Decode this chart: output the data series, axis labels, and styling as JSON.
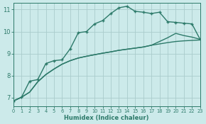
{
  "xlabel": "Humidex (Indice chaleur)",
  "background_color": "#cceaea",
  "grid_color": "#aacccc",
  "line_color": "#2d7a6a",
  "xlim": [
    0,
    23
  ],
  "ylim": [
    6.6,
    11.3
  ],
  "xticks": [
    0,
    1,
    2,
    3,
    4,
    5,
    6,
    7,
    8,
    9,
    10,
    11,
    12,
    13,
    14,
    15,
    16,
    17,
    18,
    19,
    20,
    21,
    22,
    23
  ],
  "yticks": [
    7,
    8,
    9,
    10,
    11
  ],
  "line1_x": [
    0,
    1,
    2,
    3,
    4,
    5,
    6,
    7,
    8,
    9,
    10,
    11,
    12,
    13,
    14,
    15,
    16,
    17,
    18,
    19,
    20,
    21,
    22,
    23
  ],
  "line1_y": [
    6.85,
    7.02,
    7.25,
    7.72,
    8.05,
    8.3,
    8.52,
    8.68,
    8.8,
    8.88,
    8.95,
    9.02,
    9.08,
    9.15,
    9.2,
    9.25,
    9.3,
    9.38,
    9.44,
    9.5,
    9.55,
    9.58,
    9.6,
    9.62
  ],
  "line2_x": [
    0,
    1,
    2,
    3,
    4,
    5,
    6,
    7,
    8,
    9,
    10,
    11,
    12,
    13,
    14,
    15,
    16,
    17,
    18,
    19,
    20,
    21,
    22,
    23
  ],
  "line2_y": [
    6.85,
    7.02,
    7.25,
    7.72,
    8.05,
    8.3,
    8.52,
    8.68,
    8.8,
    8.88,
    8.95,
    9.02,
    9.08,
    9.15,
    9.2,
    9.25,
    9.3,
    9.38,
    9.55,
    9.72,
    9.92,
    9.82,
    9.75,
    9.65
  ],
  "line2_markers_x": [
    20
  ],
  "line2_markers_y": [
    9.92
  ],
  "line3_x": [
    0,
    1,
    2,
    3,
    4,
    5,
    6,
    7,
    8,
    9,
    10,
    11,
    12,
    13,
    14,
    15,
    16,
    17,
    18,
    19,
    20,
    21,
    22,
    23
  ],
  "line3_y": [
    6.85,
    7.02,
    7.75,
    7.82,
    8.55,
    8.68,
    8.72,
    9.22,
    9.95,
    10.0,
    10.35,
    10.5,
    10.82,
    11.08,
    11.15,
    10.92,
    10.88,
    10.82,
    10.88,
    10.45,
    10.42,
    10.38,
    10.35,
    9.65
  ],
  "line3_markers_x": [
    2,
    3,
    4,
    5,
    6,
    7,
    8,
    9,
    10,
    11,
    12,
    13,
    14,
    15,
    16,
    17,
    18
  ],
  "line3_markers_y": [
    7.75,
    7.82,
    8.55,
    8.68,
    8.72,
    9.22,
    9.95,
    10.0,
    10.35,
    10.5,
    10.82,
    11.08,
    11.15,
    10.92,
    10.88,
    10.82,
    10.88
  ],
  "lw": 1.0,
  "ms": 3.5
}
